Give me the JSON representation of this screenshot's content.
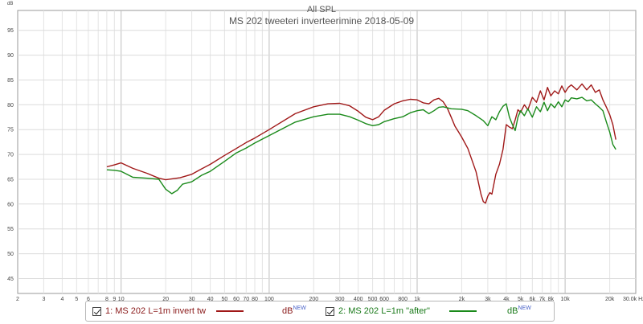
{
  "chart_data": {
    "type": "line",
    "title": "All SPL",
    "subtitle": "MS 202 tweeteri inverteerimine 2018-05-09",
    "ylabel": "dB",
    "xunit": "Hz",
    "xscale": "log",
    "xlim": [
      2,
      30000
    ],
    "ylim": [
      42,
      99
    ],
    "grid": true,
    "x_tick_labels": [
      {
        "value": 2,
        "label": "2"
      },
      {
        "value": 3,
        "label": "3"
      },
      {
        "value": 4,
        "label": "4"
      },
      {
        "value": 5,
        "label": "5"
      },
      {
        "value": 6,
        "label": "6"
      },
      {
        "value": 8,
        "label": "8"
      },
      {
        "value": 9,
        "label": "9"
      },
      {
        "value": 10,
        "label": "10"
      },
      {
        "value": 20,
        "label": "20"
      },
      {
        "value": 30,
        "label": "30"
      },
      {
        "value": 40,
        "label": "40"
      },
      {
        "value": 50,
        "label": "50"
      },
      {
        "value": 60,
        "label": "60"
      },
      {
        "value": 70,
        "label": "70"
      },
      {
        "value": 80,
        "label": "80"
      },
      {
        "value": 100,
        "label": "100"
      },
      {
        "value": 200,
        "label": "200"
      },
      {
        "value": 300,
        "label": "300"
      },
      {
        "value": 400,
        "label": "400"
      },
      {
        "value": 500,
        "label": "500"
      },
      {
        "value": 600,
        "label": "600"
      },
      {
        "value": 800,
        "label": "800"
      },
      {
        "value": 1000,
        "label": "1k"
      },
      {
        "value": 2000,
        "label": "2k"
      },
      {
        "value": 3000,
        "label": "3k"
      },
      {
        "value": 4000,
        "label": "4k"
      },
      {
        "value": 5000,
        "label": "5k"
      },
      {
        "value": 6000,
        "label": "6k"
      },
      {
        "value": 7000,
        "label": "7k"
      },
      {
        "value": 8000,
        "label": "8k"
      },
      {
        "value": 10000,
        "label": "10k"
      },
      {
        "value": 20000,
        "label": "20k"
      },
      {
        "value": 30000,
        "label": "30.0k Hz"
      }
    ],
    "y_ticks": [
      45,
      50,
      55,
      60,
      65,
      70,
      75,
      80,
      85,
      90,
      95
    ],
    "series": [
      {
        "name": "1: MS 202 L=1m invert tw",
        "color": "#a01818",
        "x": [
          8,
          9,
          10,
          12,
          15,
          18,
          20,
          25,
          30,
          35,
          40,
          50,
          60,
          70,
          80,
          100,
          150,
          200,
          250,
          300,
          350,
          400,
          450,
          500,
          550,
          600,
          700,
          800,
          900,
          1000,
          1100,
          1200,
          1300,
          1400,
          1500,
          1600,
          1700,
          1800,
          1900,
          2000,
          2200,
          2500,
          2700,
          2800,
          2900,
          3000,
          3100,
          3200,
          3400,
          3600,
          3800,
          4000,
          4200,
          4400,
          4600,
          4800,
          5000,
          5300,
          5600,
          6000,
          6400,
          6800,
          7200,
          7600,
          8000,
          8500,
          9000,
          9500,
          10000,
          10500,
          11000,
          12000,
          13000,
          14000,
          15000,
          16000,
          17000,
          18000,
          19000,
          20000,
          21000,
          22000
        ],
        "y": [
          67.5,
          67.9,
          68.3,
          67.2,
          66.2,
          65.2,
          64.9,
          65.3,
          66.0,
          67.1,
          68.0,
          69.8,
          71.2,
          72.4,
          73.3,
          75.0,
          78.2,
          79.6,
          80.2,
          80.3,
          79.8,
          78.7,
          77.5,
          77.0,
          77.6,
          78.9,
          80.2,
          80.8,
          81.1,
          81.0,
          80.4,
          80.2,
          81.0,
          81.3,
          80.6,
          79.3,
          77.5,
          75.7,
          74.6,
          73.5,
          71.2,
          66.5,
          62.0,
          60.5,
          60.2,
          61.6,
          62.3,
          62.0,
          66.0,
          68.0,
          71.0,
          76.0,
          75.5,
          75.2,
          77.0,
          79.0,
          78.5,
          80.0,
          79.0,
          81.5,
          80.5,
          82.8,
          81.0,
          83.5,
          81.8,
          82.8,
          82.2,
          83.8,
          82.5,
          83.5,
          84.0,
          83.0,
          84.2,
          83.0,
          84.0,
          82.5,
          83.0,
          81.0,
          79.5,
          78.0,
          76.0,
          73.0
        ]
      },
      {
        "name": "2: MS 202 L=1m \"after\"",
        "color": "#1a8a1a",
        "x": [
          8,
          9,
          10,
          12,
          15,
          18,
          20,
          22,
          24,
          26,
          30,
          35,
          40,
          50,
          60,
          70,
          80,
          100,
          150,
          200,
          250,
          300,
          350,
          400,
          450,
          500,
          550,
          600,
          700,
          800,
          900,
          1000,
          1100,
          1200,
          1300,
          1400,
          1500,
          1700,
          2000,
          2200,
          2500,
          2800,
          3000,
          3200,
          3400,
          3600,
          3800,
          4000,
          4200,
          4400,
          4600,
          4800,
          5000,
          5300,
          5600,
          6000,
          6400,
          6800,
          7200,
          7600,
          8000,
          8500,
          9000,
          9500,
          10000,
          10500,
          11000,
          12000,
          13000,
          14000,
          15000,
          16000,
          17000,
          18000,
          19000,
          20000,
          21000,
          22000
        ],
        "y": [
          66.9,
          66.8,
          66.6,
          65.4,
          65.2,
          65.0,
          63.0,
          62.1,
          62.8,
          64.0,
          64.5,
          65.8,
          66.6,
          68.6,
          70.3,
          71.3,
          72.3,
          73.8,
          76.5,
          77.6,
          78.1,
          78.1,
          77.6,
          76.9,
          76.2,
          75.8,
          76.0,
          76.6,
          77.2,
          77.6,
          78.4,
          78.8,
          79.0,
          78.2,
          78.8,
          79.5,
          79.6,
          79.2,
          79.1,
          78.8,
          77.8,
          76.8,
          75.8,
          77.6,
          77.0,
          78.6,
          79.7,
          80.2,
          77.5,
          76.0,
          74.8,
          77.5,
          78.8,
          77.8,
          79.2,
          77.5,
          79.6,
          78.6,
          80.5,
          78.8,
          80.2,
          79.4,
          80.6,
          79.6,
          81.0,
          80.6,
          81.4,
          81.2,
          81.5,
          80.8,
          81.0,
          80.2,
          79.5,
          78.8,
          76.5,
          74.5,
          72.0,
          71.0
        ]
      }
    ]
  },
  "legend": {
    "entries": [
      {
        "label": "1: MS 202 L=1m invert tw",
        "unit": "dB",
        "badge": "NEW",
        "color": "#a01818"
      },
      {
        "label": "2: MS 202 L=1m \"after\"",
        "unit": "dB",
        "badge": "NEW",
        "color": "#1a8a1a"
      }
    ]
  }
}
